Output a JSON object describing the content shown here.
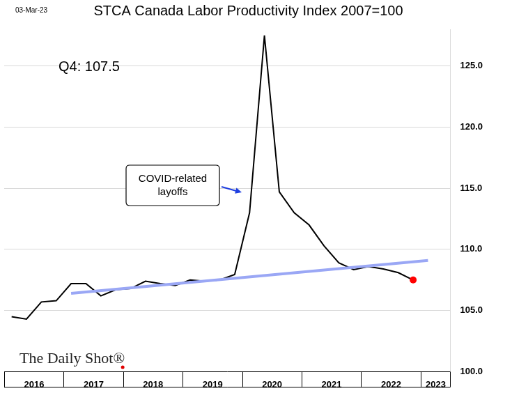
{
  "chart_data": {
    "type": "line",
    "title": "STCA Canada Labor Productivity Index 2007=100",
    "date": "03-Mar-23",
    "source": "The Daily Shot®",
    "annotations": [
      "Q4: 107.5",
      "COVID-related layoffs"
    ],
    "categories": [
      null,
      "2016",
      null,
      null,
      null,
      "2017",
      null,
      null,
      null,
      "2018",
      null,
      null,
      null,
      "2019",
      null,
      null,
      null,
      "2020",
      null,
      null,
      null,
      "2021",
      null,
      null,
      null,
      "2022",
      null,
      null,
      "2023",
      null
    ],
    "series": [
      {
        "color": "#000000",
        "values": [
          104.5,
          104.3,
          105.7,
          105.8,
          107.2,
          107.2,
          106.2,
          106.7,
          106.8,
          107.4,
          107.2,
          107.05,
          107.5,
          107.4,
          107.5,
          107.95,
          113.0,
          127.5,
          114.7,
          113.0,
          112.0,
          110.3,
          108.9,
          108.35,
          108.6,
          108.4,
          108.1,
          107.5,
          null,
          null
        ]
      },
      {
        "color": "#9aa7f5",
        "values": [
          null,
          null,
          null,
          null,
          106.4,
          null,
          null,
          null,
          null,
          null,
          null,
          null,
          null,
          null,
          null,
          null,
          null,
          null,
          null,
          null,
          null,
          null,
          null,
          null,
          null,
          null,
          null,
          null,
          109.1,
          null
        ]
      }
    ],
    "ylim": [
      100,
      128
    ],
    "yticks": [
      {
        "value": 100,
        "label": "100.0"
      },
      {
        "value": 105,
        "label": "105.0"
      },
      {
        "value": 110,
        "label": "110.0"
      },
      {
        "value": 115,
        "label": "115.0"
      },
      {
        "value": 120,
        "label": "120.0"
      },
      {
        "value": 125,
        "label": "125.0"
      }
    ],
    "grid": true
  }
}
